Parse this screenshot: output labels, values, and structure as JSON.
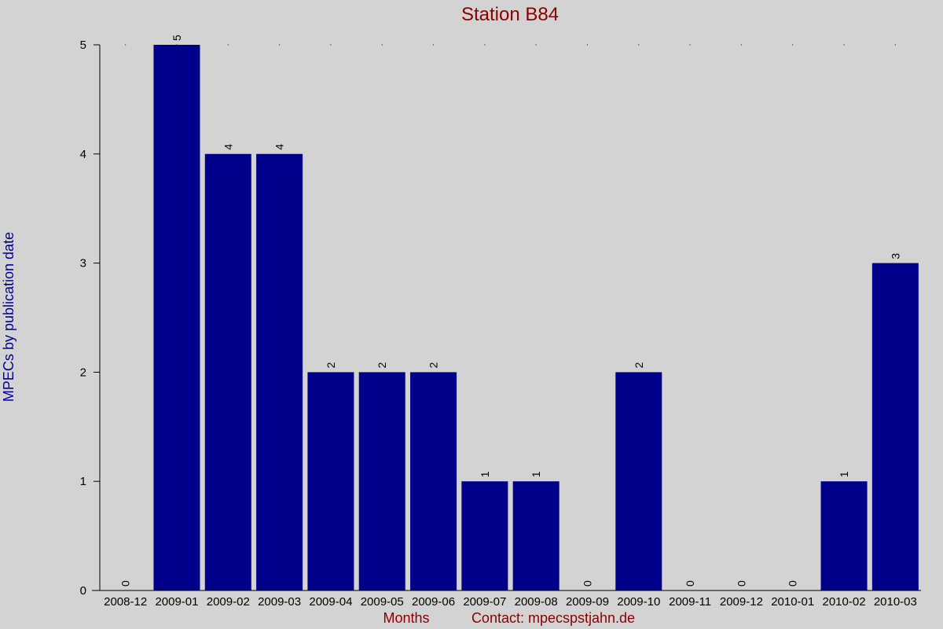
{
  "chart_data": {
    "type": "bar",
    "title": "Station B84",
    "xlabel": "Months",
    "ylabel": "MPECs by publication date",
    "contact": "Contact: mpecsрstjahn.de",
    "categories": [
      "2008-12",
      "2009-01",
      "2009-02",
      "2009-03",
      "2009-04",
      "2009-05",
      "2009-06",
      "2009-07",
      "2009-08",
      "2009-09",
      "2009-10",
      "2009-11",
      "2009-12",
      "2010-01",
      "2010-02",
      "2010-03"
    ],
    "values": [
      0,
      5,
      4,
      4,
      2,
      2,
      2,
      1,
      1,
      0,
      2,
      0,
      0,
      0,
      1,
      3
    ],
    "ylim": [
      0,
      5
    ],
    "yticks": [
      0,
      1,
      2,
      3,
      4,
      5
    ],
    "data_labels": true,
    "grid": "dotted",
    "colors": {
      "bar": "#00008b",
      "title": "#8b0000",
      "ylabel": "#00008b",
      "background": "#d3d3d3"
    }
  }
}
